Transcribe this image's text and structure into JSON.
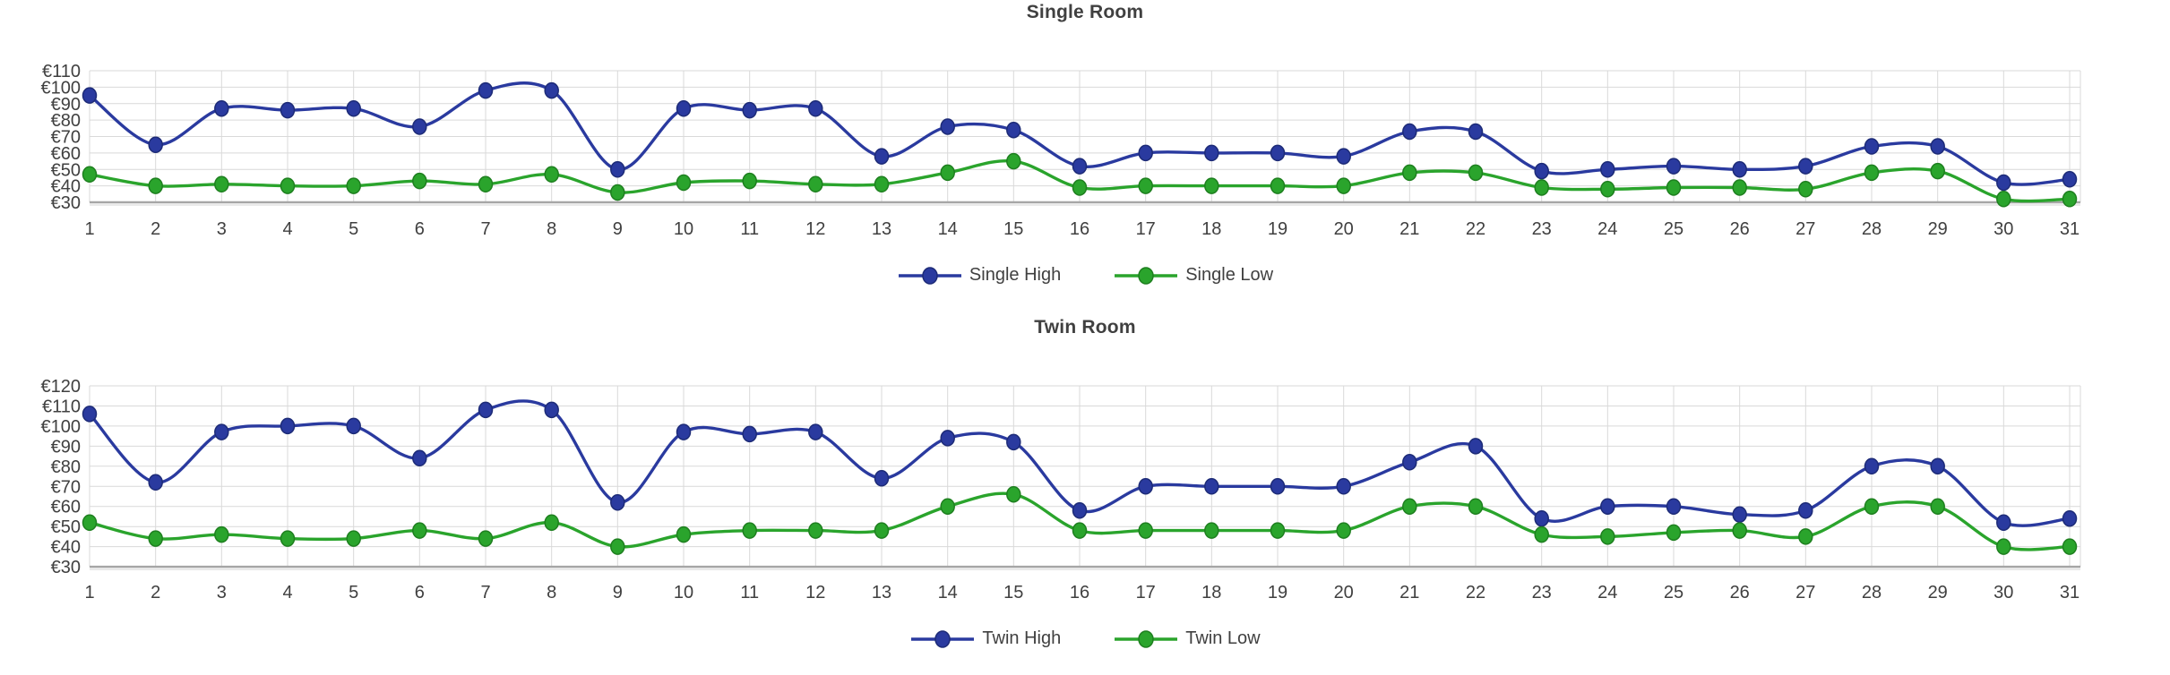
{
  "page": {
    "background": "#ffffff",
    "text_color": "#404040",
    "gridline_color": "#d9d9d9",
    "axis_line_color": "#a6a6a6"
  },
  "chart_data": [
    {
      "type": "line",
      "title": "Single Room",
      "currency_prefix": "€",
      "x": [
        1,
        2,
        3,
        4,
        5,
        6,
        7,
        8,
        9,
        10,
        11,
        12,
        13,
        14,
        15,
        16,
        17,
        18,
        19,
        20,
        21,
        22,
        23,
        24,
        25,
        26,
        27,
        28,
        29,
        30,
        31
      ],
      "ylim": [
        30,
        110
      ],
      "ystep": 10,
      "grid": true,
      "legend_position": "bottom",
      "series": [
        {
          "name": "Single High",
          "color": "#2a3a9f",
          "marker_stroke": "#1d2b77",
          "values": [
            95,
            65,
            87,
            86,
            87,
            76,
            98,
            98,
            50,
            87,
            86,
            87,
            58,
            76,
            74,
            52,
            60,
            60,
            60,
            58,
            73,
            73,
            49,
            50,
            52,
            50,
            52,
            64,
            64,
            42,
            44
          ]
        },
        {
          "name": "Single Low",
          "color": "#2aa42c",
          "marker_stroke": "#1e7f1f",
          "values": [
            47,
            40,
            41,
            40,
            40,
            43,
            41,
            47,
            36,
            42,
            43,
            41,
            41,
            48,
            55,
            39,
            40,
            40,
            40,
            40,
            48,
            48,
            39,
            38,
            39,
            39,
            38,
            48,
            49,
            32,
            32
          ]
        }
      ]
    },
    {
      "type": "line",
      "title": "Twin Room",
      "currency_prefix": "€",
      "x": [
        1,
        2,
        3,
        4,
        5,
        6,
        7,
        8,
        9,
        10,
        11,
        12,
        13,
        14,
        15,
        16,
        17,
        18,
        19,
        20,
        21,
        22,
        23,
        24,
        25,
        26,
        27,
        28,
        29,
        30,
        31
      ],
      "ylim": [
        30,
        120
      ],
      "ystep": 10,
      "grid": true,
      "legend_position": "bottom",
      "series": [
        {
          "name": "Twin High",
          "color": "#2a3a9f",
          "marker_stroke": "#1d2b77",
          "values": [
            106,
            72,
            97,
            100,
            100,
            84,
            108,
            108,
            62,
            97,
            96,
            97,
            74,
            94,
            92,
            58,
            70,
            70,
            70,
            70,
            82,
            90,
            54,
            60,
            60,
            56,
            58,
            80,
            80,
            52,
            54
          ]
        },
        {
          "name": "Twin Low",
          "color": "#2aa42c",
          "marker_stroke": "#1e7f1f",
          "values": [
            52,
            44,
            46,
            44,
            44,
            48,
            44,
            52,
            40,
            46,
            48,
            48,
            48,
            60,
            66,
            48,
            48,
            48,
            48,
            48,
            60,
            60,
            46,
            45,
            47,
            48,
            45,
            60,
            60,
            40,
            40
          ]
        }
      ]
    }
  ]
}
